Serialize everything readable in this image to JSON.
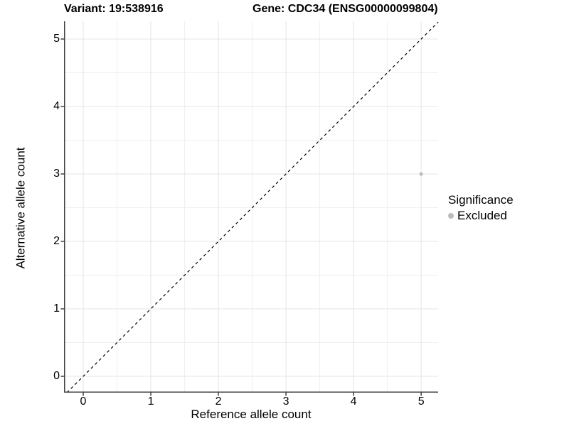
{
  "titles": {
    "variant": "Variant: 19:538916",
    "gene": "Gene: CDC34 (ENSG00000099804)"
  },
  "chart_data": {
    "type": "scatter",
    "title": "Variant: 19:538916  Gene: CDC34 (ENSG00000099804)",
    "xlabel": "Reference allele count",
    "ylabel": "Alternative allele count",
    "xlim": [
      -0.284,
      5.251
    ],
    "ylim": [
      -0.242,
      5.263
    ],
    "x_ticks": [
      0,
      1,
      2,
      3,
      4,
      5
    ],
    "y_ticks": [
      0,
      1,
      2,
      3,
      4,
      5
    ],
    "x_minor_ticks": [
      0.5,
      1.5,
      2.5,
      3.5,
      4.5
    ],
    "y_minor_ticks": [
      0.5,
      1.5,
      2.5,
      3.5,
      4.5
    ],
    "grid": true,
    "reference_line": {
      "equation": "y = x",
      "style": "dashed",
      "color": "#000000"
    },
    "series": [
      {
        "name": "Excluded",
        "color": "#bdbdbd",
        "points": [
          {
            "x": 5,
            "y": 3
          }
        ]
      }
    ],
    "legend": {
      "title": "Significance",
      "position": "right",
      "items": [
        {
          "label": "Excluded",
          "color": "#bdbdbd"
        }
      ]
    }
  },
  "colors": {
    "axis_line": "#404040",
    "major_grid": "#e4e4e4",
    "minor_grid": "#efefef",
    "point": "#bdbdbd",
    "background": "#ffffff"
  }
}
